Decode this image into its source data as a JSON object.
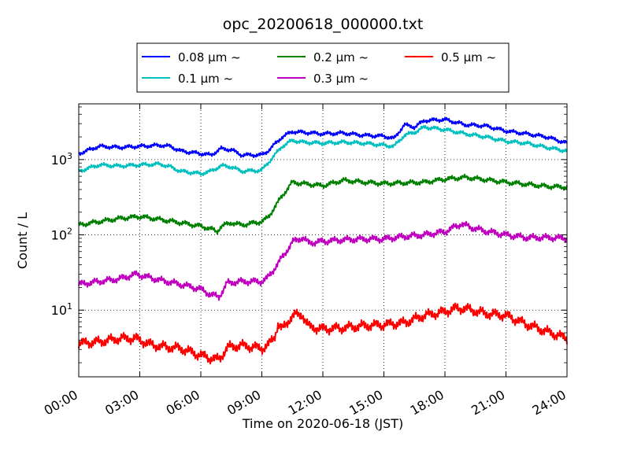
{
  "chart_data": {
    "type": "line",
    "title": "opc_20200618_000000.txt",
    "xlabel": "Time on 2020-06-18 (JST)",
    "ylabel": "Count / L",
    "x_unit": "hour",
    "xlim": [
      0,
      24
    ],
    "ylim": [
      1.3,
      5500
    ],
    "yscale": "log",
    "grid": true,
    "grid_style": "dotted",
    "legend_placement": "top-center, above plot",
    "x_tick_labels": [
      "00:00",
      "03:00",
      "06:00",
      "09:00",
      "12:00",
      "15:00",
      "18:00",
      "21:00",
      "24:00"
    ],
    "y_tick_labels": [
      {
        "value": 10,
        "base": "10",
        "exp": "1"
      },
      {
        "value": 100,
        "base": "10",
        "exp": "2"
      },
      {
        "value": 1000,
        "base": "10",
        "exp": "3"
      }
    ],
    "series": [
      {
        "name": "0.08 µm ~",
        "color": "#0000ff",
        "x": [
          0,
          1,
          2,
          3,
          4,
          4.5,
          5,
          6,
          6.5,
          7,
          7.5,
          8,
          9,
          9.3,
          10,
          10.5,
          11,
          12,
          13,
          14,
          15,
          15.5,
          16,
          16.5,
          17,
          18,
          19,
          20,
          21,
          22,
          23,
          24
        ],
        "y": [
          1200,
          1500,
          1450,
          1500,
          1550,
          1500,
          1300,
          1200,
          1150,
          1400,
          1350,
          1150,
          1150,
          1300,
          2000,
          2350,
          2300,
          2200,
          2250,
          2100,
          2050,
          1900,
          2900,
          2700,
          3300,
          3400,
          2900,
          2800,
          2400,
          2200,
          2000,
          1650
        ]
      },
      {
        "name": "0.1 µm ~",
        "color": "#00bfbf",
        "x": [
          0,
          1,
          2,
          3,
          4,
          4.5,
          5,
          6,
          6.5,
          7,
          7.5,
          8,
          9,
          9.3,
          10,
          10.5,
          11,
          12,
          13,
          14,
          15,
          15.5,
          16,
          16.5,
          17,
          18,
          19,
          20,
          21,
          22,
          23,
          24
        ],
        "y": [
          700,
          850,
          820,
          850,
          870,
          800,
          700,
          650,
          700,
          830,
          800,
          700,
          720,
          900,
          1500,
          1800,
          1700,
          1650,
          1700,
          1650,
          1550,
          1500,
          2100,
          2300,
          2700,
          2500,
          2200,
          2000,
          1750,
          1650,
          1450,
          1300
        ]
      },
      {
        "name": "0.2 µm ~",
        "color": "#008000",
        "x": [
          0,
          1,
          2,
          3,
          4,
          5,
          6,
          6.5,
          6.8,
          7,
          7.5,
          8,
          9,
          9.3,
          10,
          10.5,
          11,
          12,
          13,
          14,
          15,
          16,
          17,
          18,
          19,
          20,
          21,
          22,
          23,
          24
        ],
        "y": [
          135,
          150,
          165,
          175,
          160,
          145,
          130,
          120,
          110,
          130,
          145,
          135,
          150,
          170,
          330,
          500,
          480,
          450,
          530,
          500,
          480,
          490,
          500,
          550,
          580,
          540,
          500,
          470,
          440,
          430
        ]
      },
      {
        "name": "0.3 µm ~",
        "color": "#bf00bf",
        "x": [
          0,
          1,
          2,
          2.8,
          3.5,
          4,
          5,
          6,
          6.5,
          6.9,
          7.3,
          8,
          9,
          9.3,
          10,
          10.5,
          11,
          11.3,
          12,
          13,
          14,
          15,
          16,
          17,
          18,
          18.8,
          19.3,
          20,
          21,
          22,
          23,
          24
        ],
        "y": [
          22,
          24,
          26,
          30,
          27,
          25,
          22,
          19,
          16,
          15,
          23,
          24,
          24,
          27,
          50,
          80,
          92,
          78,
          82,
          86,
          88,
          88,
          95,
          100,
          110,
          140,
          125,
          112,
          100,
          92,
          92,
          90
        ]
      },
      {
        "name": "0.5 µm ~",
        "color": "#ff0000",
        "x": [
          0,
          1,
          2,
          2.8,
          3.5,
          4,
          5,
          6,
          6.5,
          6.9,
          7.3,
          8,
          9,
          9.3,
          9.6,
          9.8,
          10,
          10.5,
          11,
          11.3,
          12,
          13,
          14,
          15,
          16,
          17,
          18,
          18.5,
          19,
          20,
          21,
          22,
          23,
          24
        ],
        "y": [
          3.6,
          3.8,
          4.2,
          4.2,
          3.5,
          3.3,
          3.1,
          2.5,
          2.3,
          2.2,
          3.2,
          3.4,
          3.1,
          3.4,
          4.3,
          6.5,
          5.5,
          8.5,
          8.7,
          6.0,
          5.6,
          5.8,
          6.2,
          6.4,
          6.8,
          8.5,
          9.5,
          10.5,
          10.5,
          9.0,
          8.5,
          6.5,
          5.2,
          4.2
        ]
      }
    ]
  }
}
